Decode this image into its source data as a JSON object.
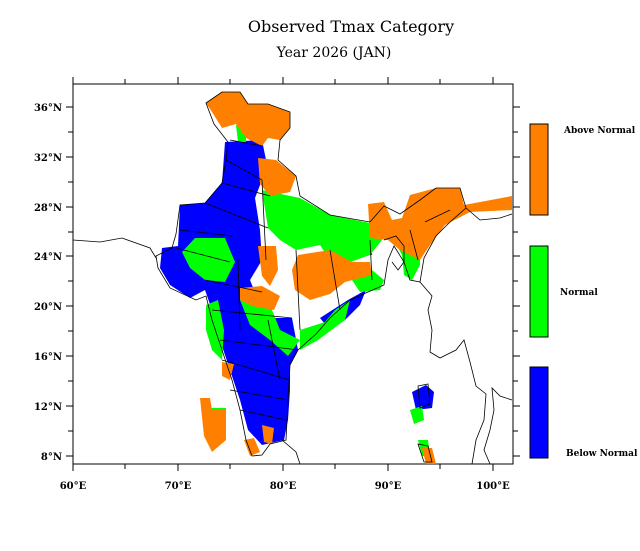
{
  "title": "Observed Tmax Category",
  "subtitle": "Year 2026 (JAN)",
  "colors": {
    "above_normal": "#ff8000",
    "normal": "#00ff00",
    "below_normal": "#0000ff",
    "outline": "#000000"
  },
  "legend": [
    {
      "label": "Above Normal",
      "color_key": "above_normal"
    },
    {
      "label": "Normal",
      "color_key": "normal"
    },
    {
      "label": "Below Normal",
      "color_key": "below_normal"
    }
  ],
  "axes": {
    "x_ticks": [
      "60°E",
      "70°E",
      "80°E",
      "90°E",
      "100°E"
    ],
    "y_ticks": [
      "36°N",
      "32°N",
      "28°N",
      "24°N",
      "20°N",
      "16°N",
      "12°N",
      "8°N"
    ],
    "lon_range": [
      60,
      102
    ],
    "lat_range": [
      6.5,
      38
    ]
  }
}
